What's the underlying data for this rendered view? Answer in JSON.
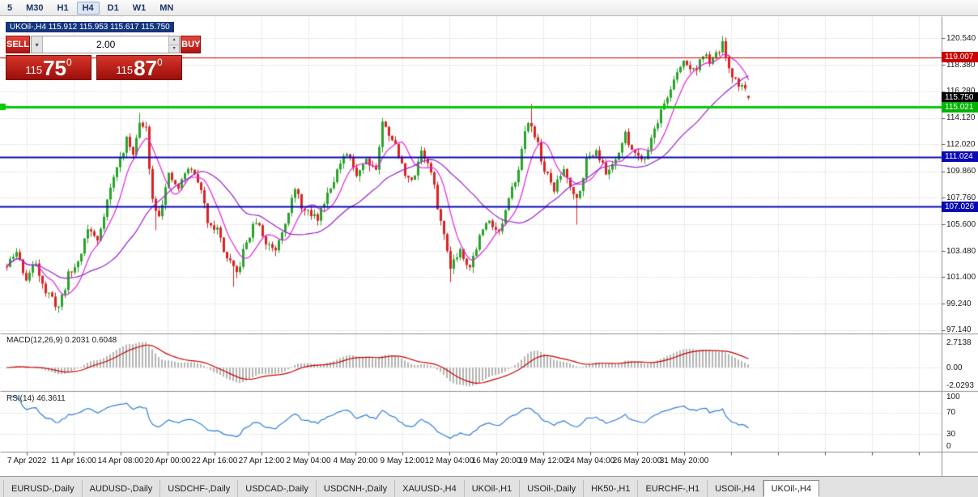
{
  "toolbar": {
    "timeframes": [
      "5",
      "M30",
      "H1",
      "H4",
      "D1",
      "W1",
      "MN"
    ],
    "active_timeframe": "H4"
  },
  "quote_box": {
    "text": "UKOil-,H4 115.912 115.953 115.617 115.750"
  },
  "trade_panel": {
    "sell_label": "SELL",
    "buy_label": "BUY",
    "volume": "2.00",
    "bid": {
      "prefix": "115",
      "big": "75",
      "sup": "0"
    },
    "ask": {
      "prefix": "115",
      "big": "87",
      "sup": "0"
    }
  },
  "price_scale": {
    "ticks": [
      "120.540",
      "118.380",
      "116.280",
      "114.120",
      "112.020",
      "109.860",
      "107.760",
      "105.600",
      "103.480",
      "101.400",
      "99.240",
      "97.140"
    ],
    "markers": [
      {
        "value": "119.007",
        "bg": "#cc0000"
      },
      {
        "value": "115.750",
        "bg": "#000000"
      },
      {
        "value": "115.021",
        "bg": "#00b400"
      },
      {
        "value": "111.024",
        "bg": "#0a0ab4"
      },
      {
        "value": "107.026",
        "bg": "#0a0ab4"
      }
    ]
  },
  "time_axis": {
    "labels": [
      "7 Apr 2022",
      "11 Apr 16:00",
      "14 Apr 08:00",
      "20 Apr 00:00",
      "22 Apr 16:00",
      "27 Apr 12:00",
      "2 May 04:00",
      "4 May 20:00",
      "9 May 12:00",
      "12 May 04:00",
      "16 May 20:00",
      "19 May 12:00",
      "24 May 04:00",
      "26 May 20:00",
      "31 May 20:00"
    ]
  },
  "indicators": {
    "macd": {
      "label": "MACD(12,26,9) 0.2031 0.6048",
      "scale": [
        "2.7138",
        "0.00",
        "-2.0293"
      ],
      "params": [
        12,
        26,
        9
      ],
      "current_values": [
        0.2031,
        0.6048
      ]
    },
    "rsi": {
      "label": "RSI(14) 46.3611",
      "scale": [
        "100",
        "70",
        "30",
        "0"
      ],
      "period": 14,
      "current_value": 46.3611
    }
  },
  "tabs": {
    "items": [
      "EURUSD-,Daily",
      "AUDUSD-,Daily",
      "USDCHF-,Daily",
      "USDCAD-,Daily",
      "USDCNH-,Daily",
      "XAUUSD-,H4",
      "UKOil-,H1",
      "USOil-,Daily",
      "HK50-,H1",
      "EURCHF-,H1",
      "USOil-,H4",
      "UKOil-,H4"
    ],
    "active": "UKOil-,H4"
  },
  "colors": {
    "candle_up": "#2ba32b",
    "candle_down": "#dd2222",
    "ma_fast": "#e322e3",
    "ma_slow": "#9922cc",
    "hline_red": "#cc0000",
    "hline_green": "#00cc00",
    "hline_blue": "#0a0ab4",
    "macd_hist": "#b4b4b4",
    "macd_signal": "#cc0000",
    "rsi_line": "#2f7ed8",
    "grid": "#c9c9c9"
  },
  "chart_data": {
    "type": "candlestick",
    "symbol": "UKOil-",
    "timeframe": "H4",
    "title": "UKOil-,H4",
    "last_candle": {
      "open": 115.912,
      "high": 115.953,
      "low": 115.617,
      "close": 115.75
    },
    "bid": 115.75,
    "ask": 115.87,
    "ylim": [
      96.9,
      121.2
    ],
    "horizontal_lines": [
      {
        "price": 119.007,
        "color": "#cc0000",
        "width": 1
      },
      {
        "price": 115.021,
        "color": "#00cc00",
        "width": 3
      },
      {
        "price": 111.024,
        "color": "#0a0ab4",
        "width": 2
      },
      {
        "price": 107.026,
        "color": "#0a0ab4",
        "width": 2
      }
    ],
    "candle_count": 230,
    "price_path_anchors": [
      [
        0,
        102.2
      ],
      [
        3,
        103.4
      ],
      [
        6,
        101.2
      ],
      [
        9,
        102.6
      ],
      [
        12,
        100.2
      ],
      [
        16,
        99.0
      ],
      [
        19,
        101.5
      ],
      [
        22,
        102.6
      ],
      [
        25,
        105.3
      ],
      [
        28,
        104.3
      ],
      [
        31,
        107.6
      ],
      [
        34,
        110.2
      ],
      [
        37,
        112.3
      ],
      [
        39,
        111.5
      ],
      [
        41,
        113.6
      ],
      [
        43,
        113.2
      ],
      [
        45,
        107.6
      ],
      [
        47,
        106.5
      ],
      [
        50,
        109.4
      ],
      [
        53,
        108.5
      ],
      [
        56,
        110.2
      ],
      [
        59,
        109.2
      ],
      [
        62,
        106.0
      ],
      [
        65,
        105.2
      ],
      [
        68,
        102.8
      ],
      [
        71,
        101.6
      ],
      [
        74,
        104.2
      ],
      [
        77,
        105.9
      ],
      [
        80,
        104.1
      ],
      [
        83,
        103.7
      ],
      [
        86,
        106.0
      ],
      [
        89,
        108.3
      ],
      [
        92,
        106.6
      ],
      [
        96,
        106.1
      ],
      [
        99,
        108.2
      ],
      [
        102,
        109.9
      ],
      [
        105,
        111.2
      ],
      [
        108,
        109.7
      ],
      [
        111,
        110.9
      ],
      [
        114,
        110.1
      ],
      [
        116,
        113.7
      ],
      [
        119,
        112.6
      ],
      [
        122,
        110.3
      ],
      [
        125,
        108.9
      ],
      [
        128,
        111.6
      ],
      [
        131,
        109.8
      ],
      [
        134,
        105.8
      ],
      [
        137,
        102.4
      ],
      [
        140,
        103.6
      ],
      [
        143,
        102.2
      ],
      [
        146,
        104.6
      ],
      [
        149,
        106.1
      ],
      [
        152,
        104.9
      ],
      [
        155,
        107.4
      ],
      [
        158,
        110.3
      ],
      [
        161,
        114.0
      ],
      [
        163,
        112.9
      ],
      [
        166,
        109.9
      ],
      [
        169,
        108.4
      ],
      [
        172,
        110.1
      ],
      [
        176,
        107.6
      ],
      [
        179,
        110.7
      ],
      [
        182,
        111.7
      ],
      [
        185,
        109.6
      ],
      [
        188,
        111.0
      ],
      [
        191,
        112.7
      ],
      [
        194,
        111.3
      ],
      [
        197,
        111.0
      ],
      [
        200,
        113.3
      ],
      [
        203,
        115.3
      ],
      [
        206,
        117.1
      ],
      [
        209,
        118.7
      ],
      [
        212,
        117.9
      ],
      [
        215,
        119.1
      ],
      [
        218,
        118.6
      ],
      [
        221,
        120.1
      ],
      [
        223,
        117.8
      ],
      [
        226,
        116.9
      ],
      [
        228,
        116.4
      ],
      [
        229,
        115.9
      ]
    ],
    "special_wicks": [
      {
        "i": 16,
        "low": 98.55
      },
      {
        "i": 41,
        "high": 114.6
      },
      {
        "i": 46,
        "low": 105.2
      },
      {
        "i": 70,
        "low": 100.6
      },
      {
        "i": 116,
        "high": 114.2
      },
      {
        "i": 137,
        "low": 101.0
      },
      {
        "i": 162,
        "high": 115.3
      },
      {
        "i": 176,
        "low": 105.6
      },
      {
        "i": 221,
        "high": 120.54
      }
    ]
  }
}
